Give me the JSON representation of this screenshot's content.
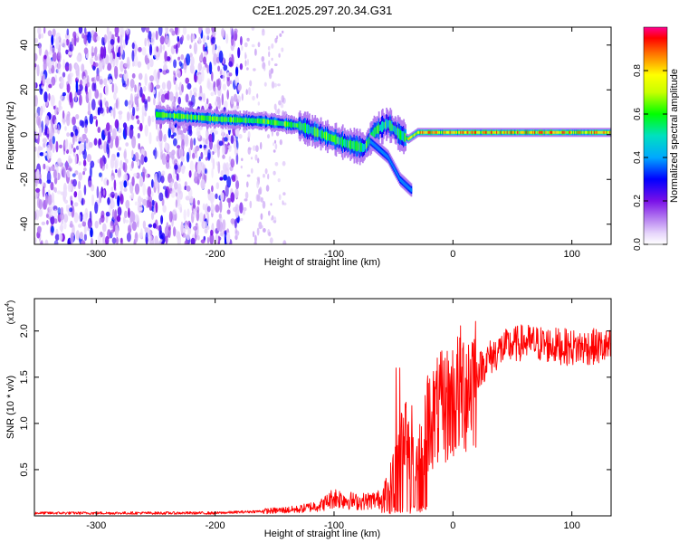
{
  "title": "C2E1.2025.297.20.34.G31",
  "chart_data": [
    {
      "type": "heatmap",
      "name": "spectrogram",
      "xlabel": "Height of straight line (km)",
      "ylabel": "Frequency (Hz)",
      "xlim": [
        -352,
        133
      ],
      "ylim": [
        -49,
        48
      ],
      "xticks": [
        -300,
        -200,
        -100,
        0,
        100
      ],
      "yticks": [
        -40,
        -20,
        0,
        20,
        40
      ],
      "xtick_labels": [
        "-300",
        "-200",
        "-100",
        "0",
        "100"
      ],
      "ytick_labels": [
        "-40",
        "-20",
        "0",
        "20",
        "40"
      ],
      "noise_region": [
        -352,
        -178
      ],
      "sparse_noise_region": [
        -178,
        -140
      ],
      "ridge": {
        "x": [
          -250,
          -200,
          -160,
          -130,
          -110,
          -90,
          -75,
          -65,
          -55,
          -45,
          -38,
          -30,
          -10,
          0,
          50,
          100,
          133
        ],
        "y": [
          9,
          7,
          6,
          4,
          0,
          -4,
          -6,
          2,
          5,
          0,
          -2,
          1,
          1,
          1,
          1,
          1,
          1
        ]
      },
      "branch": {
        "x": [
          -70,
          -55,
          -45,
          -35
        ],
        "y": [
          -3,
          -10,
          -20,
          -25
        ]
      },
      "colorbar": {
        "label": "Normalized spectral amplitude",
        "range": [
          0,
          1
        ],
        "ticks": [
          "0.0",
          "0.2",
          "0.4",
          "0.6",
          "0.8"
        ],
        "tick_values": [
          0.0,
          0.2,
          0.4,
          0.6,
          0.8
        ],
        "colors": [
          "#ffffff",
          "#d9c4f7",
          "#8a2be2",
          "#0000ff",
          "#00bfff",
          "#00ff00",
          "#ffff00",
          "#ff8000",
          "#ff0000",
          "#ff0080"
        ]
      }
    },
    {
      "type": "line",
      "name": "snr",
      "xlabel": "Height of straight line (km)",
      "ylabel": "SNR (10 * v/v)",
      "scale_label": "(x10",
      "scale_exp": "4",
      "xlim": [
        -352,
        133
      ],
      "ylim": [
        0,
        2.35
      ],
      "xticks": [
        -300,
        -200,
        -100,
        0,
        100
      ],
      "yticks": [
        0.5,
        1.0,
        1.5,
        2.0
      ],
      "xtick_labels": [
        "-300",
        "-200",
        "-100",
        "0",
        "100"
      ],
      "ytick_labels": [
        "0.5",
        "1.0",
        "1.5",
        "2.0"
      ],
      "color": "#ff0000",
      "envelope": {
        "x": [
          -352,
          -200,
          -160,
          -130,
          -110,
          -100,
          -80,
          -60,
          -50,
          -45,
          -40,
          -35,
          -30,
          -25,
          -20,
          -10,
          0,
          10,
          20,
          30,
          40,
          50,
          60,
          80,
          100,
          120,
          133
        ],
        "y": [
          0.03,
          0.03,
          0.05,
          0.07,
          0.12,
          0.2,
          0.15,
          0.18,
          0.45,
          0.75,
          0.9,
          0.8,
          0.6,
          0.9,
          1.05,
          1.15,
          1.25,
          1.4,
          1.55,
          1.7,
          1.8,
          1.85,
          1.88,
          1.85,
          1.82,
          1.83,
          1.82
        ]
      }
    }
  ]
}
